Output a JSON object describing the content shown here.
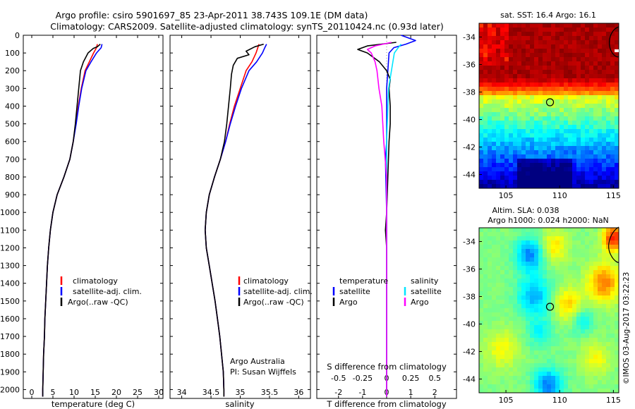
{
  "header": {
    "line1": "Argo profile: csiro 5901697_85 23-Apr-2011 38.743S 109.1E (DM data)",
    "line2": "Climatology: CARS2009. Satellite-adjusted climatology: synTS_20110424.nc (0.93d later)"
  },
  "colors": {
    "climatology": "#ff0000",
    "satellite": "#0000ff",
    "argo": "#000000",
    "argo_salinity_diff": "#ff00ff",
    "satellite_salinity_diff": "#00e5ff"
  },
  "footer": {
    "credit": "Argo Australia",
    "pi": "PI: Susan Wijffels",
    "stamp": "©IMOS 03-Aug-2017 03:22:23"
  },
  "chart_data": [
    {
      "type": "line",
      "xlabel": "temperature (deg C)",
      "xlim": [
        -2,
        31
      ],
      "ylim": [
        2050,
        0
      ],
      "xticks": [
        "0",
        "5",
        "10",
        "15",
        "20",
        "25",
        "30"
      ],
      "yticks": [
        "0",
        "100",
        "200",
        "300",
        "400",
        "500",
        "600",
        "700",
        "800",
        "900",
        "1000",
        "1100",
        "1200",
        "1300",
        "1400",
        "1500",
        "1600",
        "1700",
        "1800",
        "1900",
        "2000"
      ],
      "legend": [
        "climatology",
        "satellite-adj. clim.",
        "Argo(..raw -QC)"
      ],
      "legend_position": "lower-middle",
      "series": [
        {
          "name": "climatology",
          "color": "#ff0000",
          "points": [
            [
              15.5,
              50
            ],
            [
              15.3,
              70
            ],
            [
              14.6,
              100
            ],
            [
              13.6,
              150
            ],
            [
              12.6,
              200
            ],
            [
              11.7,
              300
            ],
            [
              11.0,
              400
            ],
            [
              10.4,
              500
            ],
            [
              9.8,
              600
            ],
            [
              9.0,
              700
            ],
            [
              7.6,
              800
            ],
            [
              6.0,
              900
            ],
            [
              5.0,
              1000
            ],
            [
              4.4,
              1100
            ],
            [
              4.0,
              1200
            ],
            [
              3.7,
              1300
            ],
            [
              3.5,
              1400
            ],
            [
              3.3,
              1500
            ],
            [
              3.1,
              1600
            ],
            [
              3.0,
              1700
            ],
            [
              2.8,
              1800
            ],
            [
              2.7,
              1900
            ],
            [
              2.6,
              2000
            ],
            [
              2.6,
              2040
            ]
          ]
        },
        {
          "name": "satellite-adj. clim.",
          "color": "#0000ff",
          "points": [
            [
              16.6,
              50
            ],
            [
              16.4,
              70
            ],
            [
              15.3,
              100
            ],
            [
              14.0,
              150
            ],
            [
              12.8,
              200
            ],
            [
              11.8,
              300
            ],
            [
              11.1,
              400
            ],
            [
              10.5,
              500
            ],
            [
              9.8,
              600
            ],
            [
              9.0,
              700
            ],
            [
              7.6,
              800
            ],
            [
              6.0,
              900
            ],
            [
              5.0,
              1000
            ],
            [
              4.4,
              1100
            ],
            [
              4.0,
              1200
            ],
            [
              3.7,
              1300
            ],
            [
              3.5,
              1400
            ],
            [
              3.3,
              1500
            ],
            [
              3.1,
              1600
            ],
            [
              3.0,
              1700
            ],
            [
              2.8,
              1800
            ],
            [
              2.7,
              1900
            ],
            [
              2.6,
              2000
            ],
            [
              2.6,
              2040
            ]
          ]
        },
        {
          "name": "Argo(..raw -QC)",
          "color": "#000000",
          "points": [
            [
              16.2,
              50
            ],
            [
              15.5,
              65
            ],
            [
              14.5,
              75
            ],
            [
              13.3,
              100
            ],
            [
              12.2,
              150
            ],
            [
              11.5,
              200
            ],
            [
              11.1,
              300
            ],
            [
              10.7,
              400
            ],
            [
              10.3,
              500
            ],
            [
              9.8,
              600
            ],
            [
              9.0,
              700
            ],
            [
              7.6,
              800
            ],
            [
              6.0,
              900
            ],
            [
              5.0,
              1000
            ],
            [
              4.4,
              1100
            ],
            [
              4.0,
              1200
            ],
            [
              3.7,
              1300
            ],
            [
              3.5,
              1400
            ],
            [
              3.3,
              1500
            ],
            [
              3.1,
              1600
            ],
            [
              3.0,
              1700
            ],
            [
              2.8,
              1800
            ],
            [
              2.7,
              1900
            ],
            [
              2.6,
              2000
            ],
            [
              2.6,
              2040
            ]
          ]
        }
      ]
    },
    {
      "type": "line",
      "xlabel": "salinity",
      "xlim": [
        33.8,
        36.2
      ],
      "ylim": [
        2050,
        0
      ],
      "xticks": [
        "34",
        "34.5",
        "35",
        "35.5",
        "36"
      ],
      "legend": [
        "climatology",
        "satellite-adj. clim.",
        "Argo(..raw -QC)"
      ],
      "legend_position": "lower-middle",
      "series": [
        {
          "name": "climatology",
          "color": "#ff0000",
          "points": [
            [
              35.32,
              50
            ],
            [
              35.3,
              70
            ],
            [
              35.27,
              100
            ],
            [
              35.2,
              150
            ],
            [
              35.1,
              200
            ],
            [
              35.0,
              300
            ],
            [
              34.9,
              400
            ],
            [
              34.82,
              500
            ],
            [
              34.75,
              600
            ],
            [
              34.66,
              700
            ],
            [
              34.56,
              800
            ],
            [
              34.47,
              900
            ],
            [
              34.42,
              1000
            ],
            [
              34.4,
              1100
            ],
            [
              34.42,
              1200
            ],
            [
              34.47,
              1300
            ],
            [
              34.52,
              1400
            ],
            [
              34.57,
              1500
            ],
            [
              34.61,
              1600
            ],
            [
              34.65,
              1700
            ],
            [
              34.68,
              1800
            ],
            [
              34.71,
              1900
            ],
            [
              34.72,
              2000
            ],
            [
              34.72,
              2040
            ]
          ]
        },
        {
          "name": "satellite-adj. clim.",
          "color": "#0000ff",
          "points": [
            [
              35.45,
              50
            ],
            [
              35.42,
              70
            ],
            [
              35.38,
              100
            ],
            [
              35.28,
              150
            ],
            [
              35.15,
              200
            ],
            [
              35.02,
              300
            ],
            [
              34.92,
              400
            ],
            [
              34.83,
              500
            ],
            [
              34.75,
              600
            ],
            [
              34.66,
              700
            ],
            [
              34.56,
              800
            ],
            [
              34.47,
              900
            ],
            [
              34.42,
              1000
            ],
            [
              34.4,
              1100
            ],
            [
              34.42,
              1200
            ],
            [
              34.47,
              1300
            ],
            [
              34.52,
              1400
            ],
            [
              34.57,
              1500
            ],
            [
              34.61,
              1600
            ],
            [
              34.65,
              1700
            ],
            [
              34.68,
              1800
            ],
            [
              34.71,
              1900
            ],
            [
              34.72,
              2000
            ],
            [
              34.72,
              2040
            ]
          ]
        },
        {
          "name": "Argo(..raw -QC)",
          "color": "#000000",
          "points": [
            [
              35.4,
              50
            ],
            [
              35.25,
              65
            ],
            [
              35.1,
              90
            ],
            [
              35.15,
              110
            ],
            [
              34.95,
              130
            ],
            [
              34.88,
              170
            ],
            [
              34.85,
              220
            ],
            [
              34.83,
              300
            ],
            [
              34.8,
              400
            ],
            [
              34.77,
              500
            ],
            [
              34.73,
              600
            ],
            [
              34.66,
              700
            ],
            [
              34.56,
              800
            ],
            [
              34.47,
              900
            ],
            [
              34.42,
              1000
            ],
            [
              34.4,
              1100
            ],
            [
              34.42,
              1200
            ],
            [
              34.47,
              1300
            ],
            [
              34.52,
              1400
            ],
            [
              34.57,
              1500
            ],
            [
              34.61,
              1600
            ],
            [
              34.65,
              1700
            ],
            [
              34.68,
              1800
            ],
            [
              34.71,
              1900
            ],
            [
              34.72,
              2000
            ],
            [
              34.72,
              2040
            ]
          ]
        }
      ]
    },
    {
      "type": "line",
      "xlabel": "T difference from climatology",
      "xlabel_top": "S difference from climatology",
      "xlim": [
        -2.9,
        2.9
      ],
      "ylim": [
        2050,
        0
      ],
      "xticks": [
        "-2",
        "-1",
        "0",
        "1",
        "2"
      ],
      "xticks_s": [
        "-0.5",
        "-0.25",
        "0",
        "0.25",
        "0.5"
      ],
      "legend_groups": [
        {
          "title": "temperature",
          "entries": [
            "satellite",
            "Argo"
          ]
        },
        {
          "title": "salinity",
          "entries": [
            "satellite",
            "Argo"
          ]
        }
      ],
      "legend_position": "lower-middle",
      "series": [
        {
          "name": "satellite",
          "group": "temperature",
          "color": "#0000ff",
          "points": [
            [
              0.6,
              0
            ],
            [
              1.2,
              30
            ],
            [
              0.8,
              50
            ],
            [
              0.3,
              70
            ],
            [
              0.1,
              100
            ],
            [
              0.05,
              200
            ],
            [
              0.0,
              300
            ],
            [
              0.0,
              600
            ],
            [
              -0.05,
              700
            ],
            [
              0.0,
              1000
            ],
            [
              0.0,
              2040
            ]
          ]
        },
        {
          "name": "Argo",
          "group": "temperature",
          "color": "#000000",
          "points": [
            [
              0.4,
              40
            ],
            [
              -0.8,
              60
            ],
            [
              -1.2,
              80
            ],
            [
              -0.8,
              100
            ],
            [
              -0.3,
              150
            ],
            [
              0.0,
              200
            ],
            [
              0.15,
              250
            ],
            [
              0.1,
              300
            ],
            [
              0.15,
              400
            ],
            [
              0.15,
              500
            ],
            [
              0.1,
              600
            ],
            [
              0.05,
              800
            ],
            [
              0.0,
              1000
            ],
            [
              -0.05,
              1100
            ],
            [
              0.0,
              1200
            ],
            [
              0.0,
              2040
            ]
          ]
        },
        {
          "name": "satellite",
          "group": "salinity",
          "color": "#00e5ff",
          "points": [
            [
              0.15,
              50
            ],
            [
              0.12,
              70
            ],
            [
              0.08,
              100
            ],
            [
              0.05,
              200
            ],
            [
              0.02,
              300
            ],
            [
              0.0,
              600
            ],
            [
              0.0,
              1000
            ],
            [
              0.0,
              2040
            ]
          ]
        },
        {
          "name": "Argo",
          "group": "salinity",
          "color": "#ff00ff",
          "points": [
            [
              0.05,
              40
            ],
            [
              -0.12,
              60
            ],
            [
              -0.2,
              80
            ],
            [
              -0.16,
              100
            ],
            [
              -0.12,
              150
            ],
            [
              -0.1,
              200
            ],
            [
              -0.08,
              300
            ],
            [
              -0.05,
              400
            ],
            [
              -0.03,
              600
            ],
            [
              0.0,
              800
            ],
            [
              0.0,
              2040
            ]
          ]
        }
      ]
    },
    {
      "type": "heatmap",
      "title": "sat. SST: 16.4  Argo: 16.1",
      "xticks": [
        "105",
        "110",
        "115"
      ],
      "yticks": [
        "-34",
        "-36",
        "-38",
        "-40",
        "-42",
        "-44"
      ],
      "xlim": [
        102.5,
        115.5
      ],
      "ylim": [
        -45,
        -33
      ],
      "marker": {
        "lon": 109.1,
        "lat": -38.743
      }
    },
    {
      "type": "heatmap",
      "title_line1": "Altim. SLA: 0.038",
      "title_line2": "Argo h1000: 0.024 h2000: NaN",
      "xticks": [
        "105",
        "110",
        "115"
      ],
      "yticks": [
        "-34",
        "-36",
        "-38",
        "-40",
        "-42",
        "-44"
      ],
      "xlim": [
        102.5,
        115.5
      ],
      "ylim": [
        -45,
        -33
      ],
      "marker": {
        "lon": 109.1,
        "lat": -38.743
      }
    }
  ]
}
